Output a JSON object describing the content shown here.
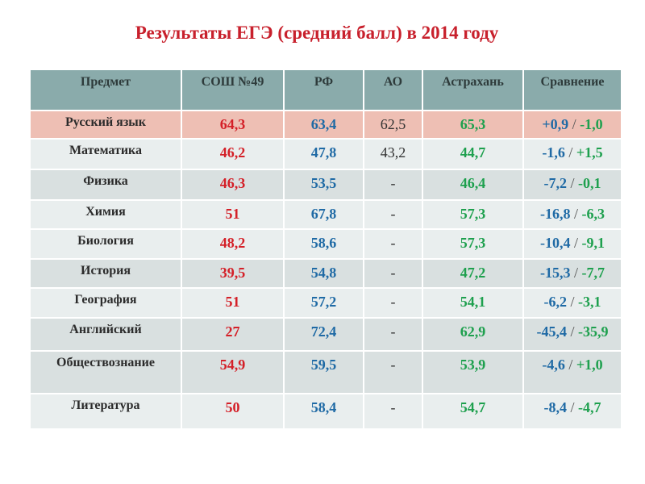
{
  "title": "Результаты ЕГЭ (средний балл) в 2014 году",
  "headers": [
    "Предмет",
    "СОШ №49",
    "РФ",
    "АО",
    "Астрахань",
    "Сравнение"
  ],
  "rows": [
    {
      "subject": "Русский язык",
      "school": "64,3",
      "rf": "63,4",
      "ao": "62,5",
      "astrakhan": "65,3",
      "cmp_rf": "+0,9",
      "cmp_ast": "-1,0"
    },
    {
      "subject": "Математика",
      "school": "46,2",
      "rf": "47,8",
      "ao": "43,2",
      "astrakhan": "44,7",
      "cmp_rf": "-1,6",
      "cmp_ast": "+1,5"
    },
    {
      "subject": "Физика",
      "school": "46,3",
      "rf": "53,5",
      "ao": "-",
      "astrakhan": "46,4",
      "cmp_rf": "-7,2",
      "cmp_ast": "-0,1"
    },
    {
      "subject": "Химия",
      "school": "51",
      "rf": "67,8",
      "ao": "-",
      "astrakhan": "57,3",
      "cmp_rf": "-16,8",
      "cmp_ast": "-6,3"
    },
    {
      "subject": "Биология",
      "school": "48,2",
      "rf": "58,6",
      "ao": "-",
      "astrakhan": "57,3",
      "cmp_rf": "-10,4",
      "cmp_ast": "-9,1"
    },
    {
      "subject": "История",
      "school": "39,5",
      "rf": "54,8",
      "ao": "-",
      "astrakhan": "47,2",
      "cmp_rf": "-15,3",
      "cmp_ast": "-7,7"
    },
    {
      "subject": "География",
      "school": "51",
      "rf": "57,2",
      "ao": "-",
      "astrakhan": "54,1",
      "cmp_rf": "-6,2",
      "cmp_ast": "-3,1"
    },
    {
      "subject": "Английский",
      "school": "27",
      "rf": "72,4",
      "ao": "-",
      "astrakhan": "62,9",
      "cmp_rf": "-45,4",
      "cmp_ast": "-35,9"
    },
    {
      "subject": "Обществознание",
      "school": "54,9",
      "rf": "59,5",
      "ao": "-",
      "astrakhan": "53,9",
      "cmp_rf": "-4,6",
      "cmp_ast": "+1,0"
    },
    {
      "subject": "Литература",
      "school": "50",
      "rf": "58,4",
      "ao": "-",
      "astrakhan": "54,7",
      "cmp_rf": "-8,4",
      "cmp_ast": "-4,7"
    }
  ],
  "separator": "/"
}
